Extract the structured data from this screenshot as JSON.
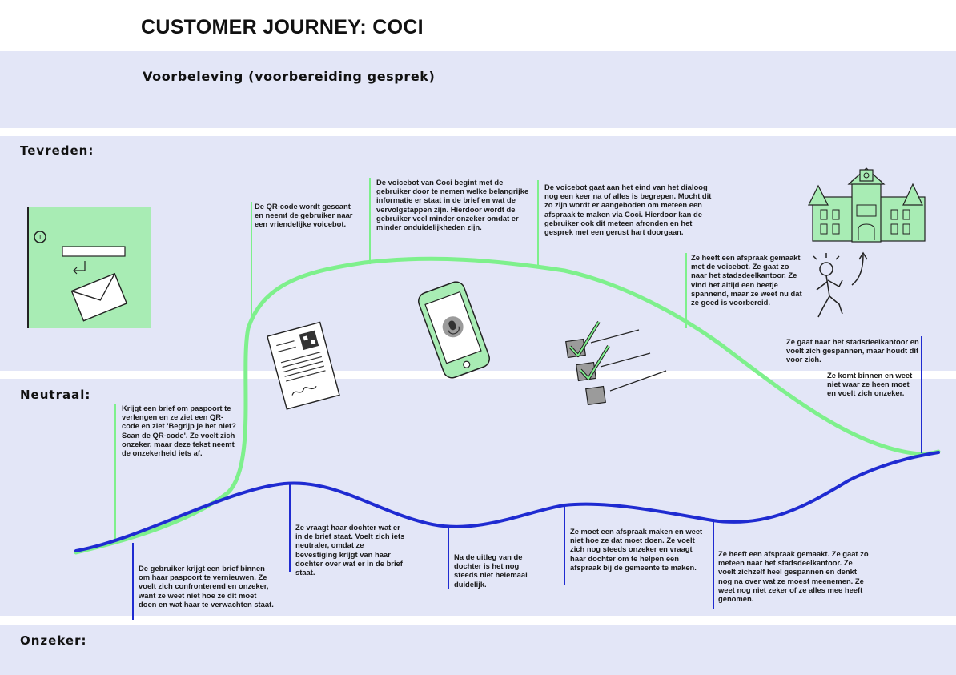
{
  "title": "CUSTOMER JOURNEY: COCI",
  "phase": "Voorbeleving (voorbereiding gesprek)",
  "zones": {
    "satisfied": "Tevreden:",
    "neutral": "Neutraal:",
    "uncertain": "Onzeker:"
  },
  "colors": {
    "band": "#e3e6f7",
    "green_line": "#7ef08c",
    "blue_line": "#1f2bd1",
    "illustration_green": "#a8ecb4"
  },
  "green_notes": {
    "letter": "Krijgt een brief om paspoort te verlengen en ze ziet een QR-code en ziet 'Begrijp je het niet? Scan de QR-code'. Ze voelt zich onzeker, maar deze tekst neemt de onzekerheid iets af.",
    "qr_scan": "De QR-code wordt gescant en neemt de gebruiker naar een vriendelijke voicebot.",
    "voicebot_intro": "De voicebot van Coci begint met de gebruiker door te nemen welke belangrijke informatie er staat in de brief en wat de vervolgstappen zijn. Hierdoor wordt de gebruiker veel minder onzeker omdat er minder onduidelijkheden zijn.",
    "voicebot_end": "De voicebot gaat aan het eind van het dialoog nog een keer na of alles is begrepen. Mocht dit zo zijn wordt er aangeboden om meteen een afspraak te maken via Coci. Hierdoor kan de gebruiker ook dit meteen afronden en het gesprek met een gerust hart doorgaan.",
    "appointment": "Ze heeft een afspraak gemaakt met de voicebot. Ze gaat zo naar het stadsdeelkantoor. Ze vind het altijd een beetje spannend, maar ze weet nu dat ze goed is voorbereid."
  },
  "blue_notes": {
    "office_tense": "Ze gaat naar het stadsdeelkantoor en voelt zich gespannen, maar houdt dit voor zich.",
    "office_enter": "Ze komt binnen en weet niet waar ze heen moet en voelt zich onzeker.",
    "letter": "De gebruiker krijgt een brief binnen om haar paspoort te vernieuwen. Ze voelt zich confronterend en onzeker, want ze weet niet hoe ze dit moet doen en wat haar te verwachten staat.",
    "daughter": "Ze vraagt haar dochter wat er in de brief staat. Voelt zich iets neutraler, omdat ze bevestiging krijgt van haar dochter over wat er in de brief staat.",
    "explanation": "Na de uitleg van de dochter is het nog steeds niet helemaal duidelijk.",
    "make_appointment": "Ze moet een afspraak maken en weet niet hoe ze dat moet doen. Ze voelt zich nog steeds onzeker en vraagt haar dochter om te helpen een afspraak bij de gemeente te maken.",
    "appointment_made": "Ze heeft een afspraak gemaakt. Ze gaat zo meteen naar het stadsdeelkantoor. Ze voelt zichzelf heel gespannen en denkt nog na over wat ze moest meenemen. Ze weet nog niet zeker of ze alles mee heeft genomen."
  }
}
